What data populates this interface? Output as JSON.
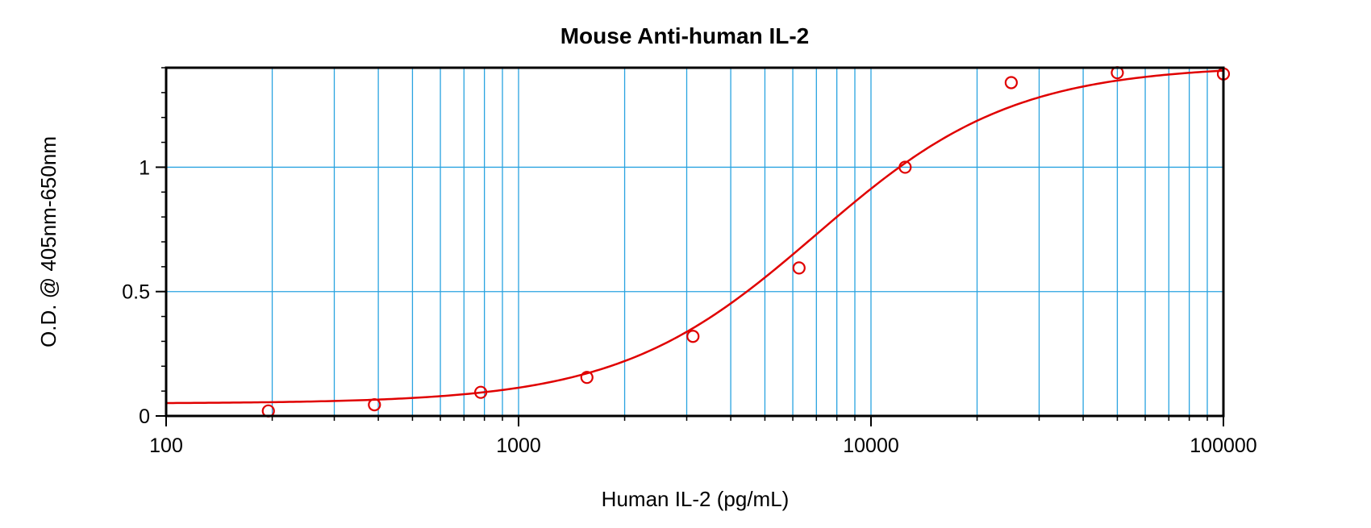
{
  "chart_data": {
    "type": "scatter",
    "title": "Mouse Anti-human IL-2",
    "xlabel": "Human IL-2 (pg/mL)",
    "ylabel": "O.D. @ 405nm-650nm",
    "xscale": "log",
    "xlim": [
      100,
      100000
    ],
    "ylim": [
      0,
      1.4
    ],
    "grid": true,
    "x_ticks": [
      100,
      1000,
      10000,
      100000
    ],
    "x_tick_labels": [
      "100",
      "1000",
      "10000",
      "100000"
    ],
    "y_ticks": [
      0,
      0.5,
      1
    ],
    "y_tick_labels": [
      "0",
      "0.5",
      "1"
    ],
    "series": [
      {
        "points": [
          {
            "x": 195,
            "y": 0.02
          },
          {
            "x": 390,
            "y": 0.045
          },
          {
            "x": 781,
            "y": 0.095
          },
          {
            "x": 1563,
            "y": 0.155
          },
          {
            "x": 3125,
            "y": 0.32
          },
          {
            "x": 6250,
            "y": 0.595
          },
          {
            "x": 12500,
            "y": 1.0
          },
          {
            "x": 25000,
            "y": 1.34
          },
          {
            "x": 50000,
            "y": 1.38
          },
          {
            "x": 100000,
            "y": 1.375
          }
        ]
      }
    ],
    "fit_curve": {
      "model": "4PL",
      "bottom": 0.05,
      "top": 1.41,
      "ec50": 7000,
      "hill": 1.55
    },
    "colors": {
      "series": "#e00000",
      "grid": "#29a3e0",
      "axis": "#000000"
    }
  }
}
